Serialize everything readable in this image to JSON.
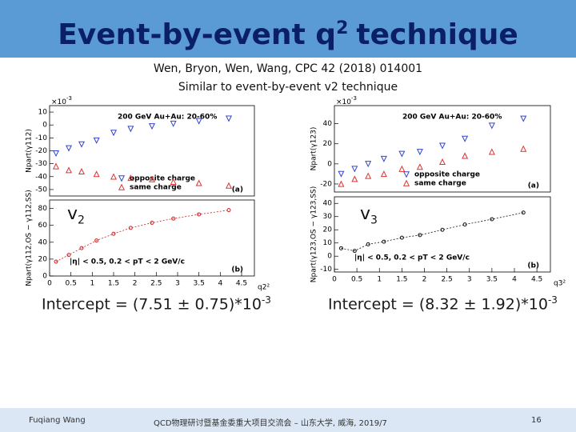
{
  "header": {
    "title": "Event-by-event q",
    "title_sup": "2",
    "title_rest": "technique"
  },
  "subtitle": [
    "Wen, Bryon, Wen, Wang, CPC 42 (2018) 014001",
    "Similar to event-by-event v2 technique"
  ],
  "flow_labels": [
    {
      "text": "v",
      "sub": "2"
    },
    {
      "text": "v",
      "sub": "3"
    }
  ],
  "intercepts": [
    {
      "text": "Intercept = (7.51 ± 0.75)*10",
      "sup": "-3"
    },
    {
      "text": "Intercept = (8.32 ± 1.92)*10",
      "sup": "-3"
    }
  ],
  "footer": {
    "author": "Fuqiang Wang",
    "event": "QCD物理研讨暨基金委重大项目交流会 – 山东大学, 威海, 2019/7",
    "page": "16"
  },
  "chart_data": [
    {
      "type": "scatter",
      "ylabel": "Npart(γ112)",
      "multiplier": "×10",
      "multiplier_exp": "-3",
      "annotation": "200 GeV Au+Au: 20-60%",
      "panel_label": "(a)",
      "xlim": [
        0,
        4.8
      ],
      "ylim": [
        -55,
        15
      ],
      "yticks": [
        10,
        0,
        -10,
        -20,
        -30,
        -40,
        -50
      ],
      "x": [
        0.15,
        0.45,
        0.75,
        1.1,
        1.5,
        1.9,
        2.4,
        2.9,
        3.5,
        4.2
      ],
      "series": [
        {
          "name": "opposite charge",
          "color": "#3344cc",
          "marker": "triangle-down",
          "values": [
            -22,
            -18,
            -15,
            -12,
            -6,
            -3,
            -1,
            1,
            3,
            5
          ]
        },
        {
          "name": "same charge",
          "color": "#dd3333",
          "marker": "triangle-up",
          "values": [
            -32,
            -35,
            -36,
            -38,
            -40,
            -41,
            -42,
            -44,
            -45,
            -47
          ]
        }
      ]
    },
    {
      "type": "scatter",
      "ylabel": "Npart(γ112,OS − γ112,SS)",
      "annotation": "|η| < 0.5, 0.2 < pT < 2 GeV/c",
      "panel_label": "(b)",
      "xlabel": "q2²",
      "xlim": [
        0,
        4.8
      ],
      "xticks": [
        0,
        0.5,
        1,
        1.5,
        2,
        2.5,
        3,
        3.5,
        4,
        4.5
      ],
      "ylim": [
        0,
        90
      ],
      "yticks": [
        0,
        20,
        40,
        60,
        80
      ],
      "x": [
        0.15,
        0.45,
        0.75,
        1.1,
        1.5,
        1.9,
        2.4,
        2.9,
        3.5,
        4.2
      ],
      "series": [
        {
          "color": "#cc2222",
          "marker": "circle",
          "values": [
            17,
            25,
            33,
            42,
            50,
            57,
            63,
            68,
            73,
            78
          ]
        }
      ]
    },
    {
      "type": "scatter",
      "ylabel": "Npart(γ123)",
      "multiplier": "×10",
      "multiplier_exp": "-3",
      "annotation": "200 GeV Au+Au: 20-60%",
      "panel_label": "(a)",
      "xlim": [
        0,
        4.8
      ],
      "ylim": [
        -28,
        58
      ],
      "yticks": [
        -20,
        0,
        20,
        40
      ],
      "x": [
        0.15,
        0.45,
        0.75,
        1.1,
        1.5,
        1.9,
        2.4,
        2.9,
        3.5,
        4.2
      ],
      "series": [
        {
          "name": "opposite charge",
          "color": "#3344cc",
          "marker": "triangle-down",
          "values": [
            -10,
            -5,
            0,
            5,
            10,
            12,
            18,
            25,
            38,
            45
          ]
        },
        {
          "name": "same charge",
          "color": "#dd3333",
          "marker": "triangle-up",
          "values": [
            -20,
            -15,
            -12,
            -10,
            -5,
            -3,
            2,
            8,
            12,
            15
          ]
        }
      ]
    },
    {
      "type": "scatter",
      "ylabel": "Npart(γ123,OS − γ123,SS)",
      "annotation": "|η| < 0.5, 0.2 < pT < 2 GeV/c",
      "panel_label": "(b)",
      "xlabel": "q3²",
      "xlim": [
        0,
        4.8
      ],
      "xticks": [
        0,
        0.5,
        1,
        1.5,
        2,
        2.5,
        3,
        3.5,
        4,
        4.5
      ],
      "ylim": [
        -12,
        45
      ],
      "yticks": [
        -10,
        0,
        10,
        20,
        30,
        40
      ],
      "x": [
        0.15,
        0.45,
        0.75,
        1.1,
        1.5,
        1.9,
        2.4,
        2.9,
        3.5,
        4.2
      ],
      "series": [
        {
          "color": "#111111",
          "marker": "circle",
          "values": [
            6,
            4,
            9,
            11,
            14,
            16,
            20,
            24,
            28,
            33
          ]
        }
      ]
    }
  ]
}
